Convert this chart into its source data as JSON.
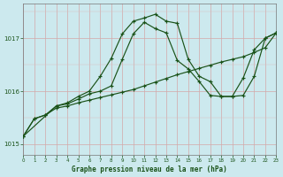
{
  "title": "Graphe pression niveau de la mer (hPa)",
  "bg_color": "#cce9ee",
  "line_color": "#1a5218",
  "xlim": [
    0,
    23
  ],
  "ylim": [
    1014.8,
    1017.65
  ],
  "yticks": [
    1015,
    1016,
    1017
  ],
  "xticks": [
    0,
    1,
    2,
    3,
    4,
    5,
    6,
    7,
    8,
    9,
    10,
    11,
    12,
    13,
    14,
    15,
    16,
    17,
    18,
    19,
    20,
    21,
    22,
    23
  ],
  "series1_x": [
    0,
    1,
    2,
    3,
    4,
    5,
    6,
    7,
    8,
    9,
    10,
    11,
    12,
    13,
    14,
    15,
    16,
    17,
    18,
    19,
    20,
    21,
    22,
    23
  ],
  "series1_y": [
    1015.15,
    1015.48,
    1015.55,
    1015.68,
    1015.72,
    1015.78,
    1015.83,
    1015.88,
    1015.93,
    1015.98,
    1016.03,
    1016.1,
    1016.17,
    1016.24,
    1016.31,
    1016.37,
    1016.43,
    1016.49,
    1016.55,
    1016.6,
    1016.65,
    1016.73,
    1016.82,
    1017.1
  ],
  "series2_x": [
    0,
    3,
    4,
    5,
    6,
    7,
    8,
    9,
    10,
    11,
    12,
    13,
    14,
    15,
    16,
    17,
    18,
    19,
    20,
    21,
    22,
    23
  ],
  "series2_y": [
    1015.15,
    1015.72,
    1015.78,
    1015.9,
    1016.0,
    1016.28,
    1016.62,
    1017.08,
    1017.32,
    1017.38,
    1017.45,
    1017.32,
    1017.28,
    1016.6,
    1016.28,
    1016.18,
    1015.9,
    1015.9,
    1015.92,
    1016.28,
    1017.0,
    1017.1
  ],
  "series3_x": [
    0,
    1,
    2,
    3,
    4,
    5,
    6,
    7,
    8,
    9,
    10,
    11,
    12,
    13,
    14,
    15,
    16,
    17,
    18,
    19,
    20,
    21,
    22,
    23
  ],
  "series3_y": [
    1015.15,
    1015.48,
    1015.55,
    1015.72,
    1015.76,
    1015.85,
    1015.95,
    1016.0,
    1016.1,
    1016.6,
    1017.08,
    1017.3,
    1017.18,
    1017.1,
    1016.58,
    1016.42,
    1016.18,
    1015.92,
    1015.9,
    1015.9,
    1016.25,
    1016.78,
    1017.0,
    1017.1
  ]
}
